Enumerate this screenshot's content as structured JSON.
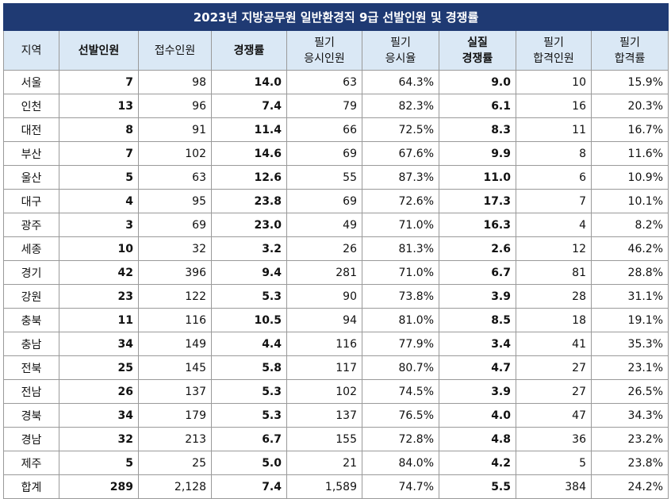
{
  "chart_data": {
    "type": "table",
    "title": "2023년 지방공무원 일반환경직 9급 선발인원 및 경쟁률",
    "columns": [
      {
        "lines": [
          "지역"
        ],
        "bold": false
      },
      {
        "lines": [
          "선발인원"
        ],
        "bold": true
      },
      {
        "lines": [
          "접수인원"
        ],
        "bold": false
      },
      {
        "lines": [
          "경쟁률"
        ],
        "bold": true
      },
      {
        "lines": [
          "필기",
          "응시인원"
        ],
        "bold": false
      },
      {
        "lines": [
          "필기",
          "응시율"
        ],
        "bold": false
      },
      {
        "lines": [
          "실질",
          "경쟁률"
        ],
        "bold": true
      },
      {
        "lines": [
          "필기",
          "합격인원"
        ],
        "bold": false
      },
      {
        "lines": [
          "필기",
          "합격률"
        ],
        "bold": false
      }
    ],
    "rows": [
      [
        "서울",
        "7",
        "98",
        "14.0",
        "63",
        "64.3%",
        "9.0",
        "10",
        "15.9%"
      ],
      [
        "인천",
        "13",
        "96",
        "7.4",
        "79",
        "82.3%",
        "6.1",
        "16",
        "20.3%"
      ],
      [
        "대전",
        "8",
        "91",
        "11.4",
        "66",
        "72.5%",
        "8.3",
        "11",
        "16.7%"
      ],
      [
        "부산",
        "7",
        "102",
        "14.6",
        "69",
        "67.6%",
        "9.9",
        "8",
        "11.6%"
      ],
      [
        "울산",
        "5",
        "63",
        "12.6",
        "55",
        "87.3%",
        "11.0",
        "6",
        "10.9%"
      ],
      [
        "대구",
        "4",
        "95",
        "23.8",
        "69",
        "72.6%",
        "17.3",
        "7",
        "10.1%"
      ],
      [
        "광주",
        "3",
        "69",
        "23.0",
        "49",
        "71.0%",
        "16.3",
        "4",
        "8.2%"
      ],
      [
        "세종",
        "10",
        "32",
        "3.2",
        "26",
        "81.3%",
        "2.6",
        "12",
        "46.2%"
      ],
      [
        "경기",
        "42",
        "396",
        "9.4",
        "281",
        "71.0%",
        "6.7",
        "81",
        "28.8%"
      ],
      [
        "강원",
        "23",
        "122",
        "5.3",
        "90",
        "73.8%",
        "3.9",
        "28",
        "31.1%"
      ],
      [
        "충북",
        "11",
        "116",
        "10.5",
        "94",
        "81.0%",
        "8.5",
        "18",
        "19.1%"
      ],
      [
        "충남",
        "34",
        "149",
        "4.4",
        "116",
        "77.9%",
        "3.4",
        "41",
        "35.3%"
      ],
      [
        "전북",
        "25",
        "145",
        "5.8",
        "117",
        "80.7%",
        "4.7",
        "27",
        "23.1%"
      ],
      [
        "전남",
        "26",
        "137",
        "5.3",
        "102",
        "74.5%",
        "3.9",
        "27",
        "26.5%"
      ],
      [
        "경북",
        "34",
        "179",
        "5.3",
        "137",
        "76.5%",
        "4.0",
        "47",
        "34.3%"
      ],
      [
        "경남",
        "32",
        "213",
        "6.7",
        "155",
        "72.8%",
        "4.8",
        "36",
        "23.2%"
      ],
      [
        "제주",
        "5",
        "25",
        "5.0",
        "21",
        "84.0%",
        "4.2",
        "5",
        "23.8%"
      ],
      [
        "합계",
        "289",
        "2,128",
        "7.4",
        "1,589",
        "74.7%",
        "5.5",
        "384",
        "24.2%"
      ]
    ]
  },
  "colors": {
    "title_bg": "#1f3a73",
    "title_text": "#ffffff",
    "header_bg": "#dae8f5",
    "border": "#9a9a9a"
  }
}
